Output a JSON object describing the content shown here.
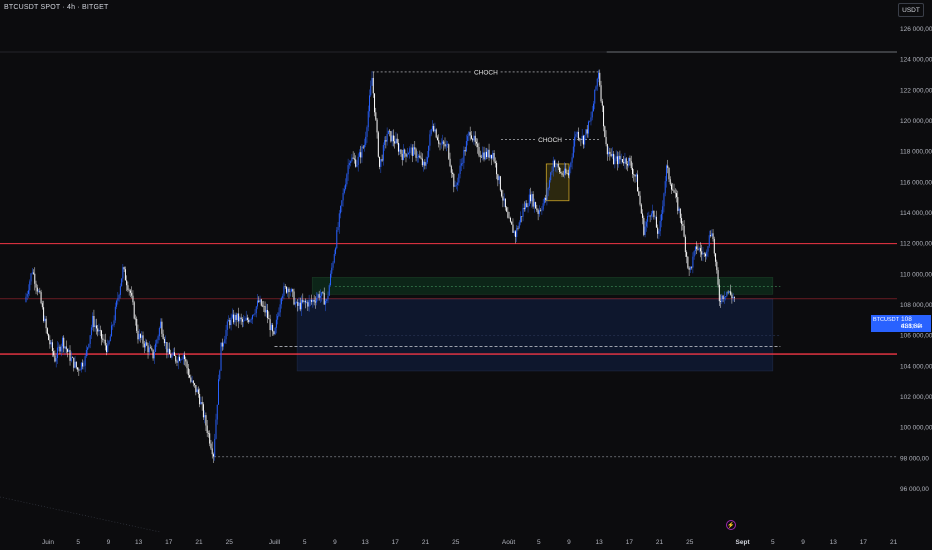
{
  "header": {
    "title": "BTCUSDT SPOT · 4h · BITGET",
    "currency_button": "USDT"
  },
  "price_badge": {
    "symbol": "BTCUSDT",
    "price": "108 438,82",
    "countdown": "01:17:44"
  },
  "annotations": {
    "choch_upper": "CHOCH",
    "choch_lower": "CHOCH"
  },
  "colors": {
    "bull": "#2962ff",
    "bear": "#ffffff",
    "resistance": "#f23645",
    "zone_blue": "#0f1a33",
    "zone_green": "#0d2a1a"
  },
  "chart_data": {
    "type": "candlestick",
    "title": "BTCUSDT SPOT · 4h · BITGET",
    "ylim": [
      95000,
      127000
    ],
    "y_ticks": [
      {
        "value": 126000,
        "label": "126 000,00"
      },
      {
        "value": 124000,
        "label": "124 000,00"
      },
      {
        "value": 122000,
        "label": "122 000,00"
      },
      {
        "value": 120000,
        "label": "120 000,00"
      },
      {
        "value": 118000,
        "label": "118 000,00"
      },
      {
        "value": 116000,
        "label": "116 000,00"
      },
      {
        "value": 114000,
        "label": "114 000,00"
      },
      {
        "value": 112000,
        "label": "112 000,00"
      },
      {
        "value": 110000,
        "label": "110 000,00"
      },
      {
        "value": 108000,
        "label": "108 000,00"
      },
      {
        "value": 106000,
        "label": "106 000,00"
      },
      {
        "value": 104000,
        "label": "104 000,00"
      },
      {
        "value": 102000,
        "label": "102 000,00"
      },
      {
        "value": 100000,
        "label": "100 000,00"
      },
      {
        "value": 98000,
        "label": "98 000,00"
      },
      {
        "value": 96000,
        "label": "96 000,00"
      }
    ],
    "x_ticks": [
      {
        "date": "2025-06-01",
        "label": "Juin",
        "strong": false
      },
      {
        "date": "2025-06-05",
        "label": "5",
        "strong": false
      },
      {
        "date": "2025-06-09",
        "label": "9",
        "strong": false
      },
      {
        "date": "2025-06-13",
        "label": "13",
        "strong": false
      },
      {
        "date": "2025-06-17",
        "label": "17",
        "strong": false
      },
      {
        "date": "2025-06-21",
        "label": "21",
        "strong": false
      },
      {
        "date": "2025-06-25",
        "label": "25",
        "strong": false
      },
      {
        "date": "2025-07-01",
        "label": "Juill",
        "strong": false
      },
      {
        "date": "2025-07-05",
        "label": "5",
        "strong": false
      },
      {
        "date": "2025-07-09",
        "label": "9",
        "strong": false
      },
      {
        "date": "2025-07-13",
        "label": "13",
        "strong": false
      },
      {
        "date": "2025-07-17",
        "label": "17",
        "strong": false
      },
      {
        "date": "2025-07-21",
        "label": "21",
        "strong": false
      },
      {
        "date": "2025-07-25",
        "label": "25",
        "strong": false
      },
      {
        "date": "2025-08-01",
        "label": "Août",
        "strong": false
      },
      {
        "date": "2025-08-05",
        "label": "5",
        "strong": false
      },
      {
        "date": "2025-08-09",
        "label": "9",
        "strong": false
      },
      {
        "date": "2025-08-13",
        "label": "13",
        "strong": false
      },
      {
        "date": "2025-08-17",
        "label": "17",
        "strong": false
      },
      {
        "date": "2025-08-21",
        "label": "21",
        "strong": false
      },
      {
        "date": "2025-08-25",
        "label": "25",
        "strong": false
      },
      {
        "date": "2025-09-01",
        "label": "Sept",
        "strong": true
      },
      {
        "date": "2025-09-05",
        "label": "5",
        "strong": false
      },
      {
        "date": "2025-09-09",
        "label": "9",
        "strong": false
      },
      {
        "date": "2025-09-13",
        "label": "13",
        "strong": false
      },
      {
        "date": "2025-09-17",
        "label": "17",
        "strong": false
      },
      {
        "date": "2025-09-21",
        "label": "21",
        "strong": false
      }
    ],
    "price_path": [
      [
        "2025-05-29",
        108200
      ],
      [
        "2025-05-30",
        110300
      ],
      [
        "2025-05-31",
        108500
      ],
      [
        "2025-06-01",
        106000
      ],
      [
        "2025-06-02",
        104500
      ],
      [
        "2025-06-03",
        105700
      ],
      [
        "2025-06-04",
        104600
      ],
      [
        "2025-06-05",
        103800
      ],
      [
        "2025-06-06",
        104500
      ],
      [
        "2025-06-07",
        107000
      ],
      [
        "2025-06-08",
        106000
      ],
      [
        "2025-06-09",
        105100
      ],
      [
        "2025-06-10",
        107600
      ],
      [
        "2025-06-11",
        110300
      ],
      [
        "2025-06-12",
        108800
      ],
      [
        "2025-06-13",
        106000
      ],
      [
        "2025-06-14",
        105400
      ],
      [
        "2025-06-15",
        104700
      ],
      [
        "2025-06-16",
        106800
      ],
      [
        "2025-06-17",
        104800
      ],
      [
        "2025-06-18",
        104500
      ],
      [
        "2025-06-19",
        104800
      ],
      [
        "2025-06-20",
        103000
      ],
      [
        "2025-06-21",
        102200
      ],
      [
        "2025-06-22",
        100200
      ],
      [
        "2025-06-23",
        98300
      ],
      [
        "2025-06-24",
        105200
      ],
      [
        "2025-06-25",
        106900
      ],
      [
        "2025-06-26",
        107200
      ],
      [
        "2025-06-27",
        106800
      ],
      [
        "2025-06-28",
        107300
      ],
      [
        "2025-06-29",
        108200
      ],
      [
        "2025-06-30",
        107500
      ],
      [
        "2025-07-01",
        105800
      ],
      [
        "2025-07-02",
        108800
      ],
      [
        "2025-07-03",
        109200
      ],
      [
        "2025-07-04",
        107900
      ],
      [
        "2025-07-05",
        108100
      ],
      [
        "2025-07-06",
        108200
      ],
      [
        "2025-07-07",
        108700
      ],
      [
        "2025-07-08",
        108200
      ],
      [
        "2025-07-09",
        111500
      ],
      [
        "2025-07-10",
        114700
      ],
      [
        "2025-07-11",
        117600
      ],
      [
        "2025-07-12",
        117300
      ],
      [
        "2025-07-13",
        118500
      ],
      [
        "2025-07-14",
        122800
      ],
      [
        "2025-07-15",
        117000
      ],
      [
        "2025-07-16",
        119200
      ],
      [
        "2025-07-17",
        118700
      ],
      [
        "2025-07-18",
        117800
      ],
      [
        "2025-07-19",
        118100
      ],
      [
        "2025-07-20",
        117800
      ],
      [
        "2025-07-21",
        116900
      ],
      [
        "2025-07-22",
        119900
      ],
      [
        "2025-07-23",
        118500
      ],
      [
        "2025-07-24",
        118300
      ],
      [
        "2025-07-25",
        115500
      ],
      [
        "2025-07-26",
        117600
      ],
      [
        "2025-07-27",
        119400
      ],
      [
        "2025-07-28",
        118000
      ],
      [
        "2025-07-29",
        117800
      ],
      [
        "2025-07-30",
        117900
      ],
      [
        "2025-07-31",
        115700
      ],
      [
        "2025-08-01",
        113500
      ],
      [
        "2025-08-02",
        112600
      ],
      [
        "2025-08-03",
        114200
      ],
      [
        "2025-08-04",
        115100
      ],
      [
        "2025-08-05",
        114100
      ],
      [
        "2025-08-06",
        114900
      ],
      [
        "2025-08-07",
        117400
      ],
      [
        "2025-08-08",
        116600
      ],
      [
        "2025-08-09",
        116500
      ],
      [
        "2025-08-10",
        119300
      ],
      [
        "2025-08-11",
        118800
      ],
      [
        "2025-08-12",
        120100
      ],
      [
        "2025-08-13",
        123300
      ],
      [
        "2025-08-14",
        118300
      ],
      [
        "2025-08-15",
        117400
      ],
      [
        "2025-08-16",
        117500
      ],
      [
        "2025-08-17",
        117400
      ],
      [
        "2025-08-18",
        116200
      ],
      [
        "2025-08-19",
        112900
      ],
      [
        "2025-08-20",
        114300
      ],
      [
        "2025-08-21",
        112500
      ],
      [
        "2025-08-22",
        116900
      ],
      [
        "2025-08-23",
        115300
      ],
      [
        "2025-08-24",
        113500
      ],
      [
        "2025-08-25",
        110100
      ],
      [
        "2025-08-26",
        111800
      ],
      [
        "2025-08-27",
        111200
      ],
      [
        "2025-08-28",
        113000
      ],
      [
        "2025-08-29",
        108400
      ],
      [
        "2025-08-30",
        108900
      ],
      [
        "2025-08-31",
        108438
      ]
    ],
    "levels": {
      "high_line": 124500,
      "resistance_red": 112000,
      "red_thin": 108400,
      "support_red": 104800,
      "low_dashed": 98100,
      "white_dashed_long": 105300,
      "choch_upper": 123200,
      "choch_lower": 118800
    },
    "zones": [
      {
        "kind": "blue",
        "from": "2025-07-04",
        "to": "2025-09-05",
        "top": 108400,
        "bottom": 103700
      },
      {
        "kind": "green",
        "from": "2025-07-06",
        "to": "2025-09-05",
        "top": 109800,
        "bottom": 108700
      }
    ],
    "highlight_box": {
      "from": "2025-08-06",
      "to": "2025-08-09",
      "top": 117200,
      "bottom": 114800
    }
  }
}
